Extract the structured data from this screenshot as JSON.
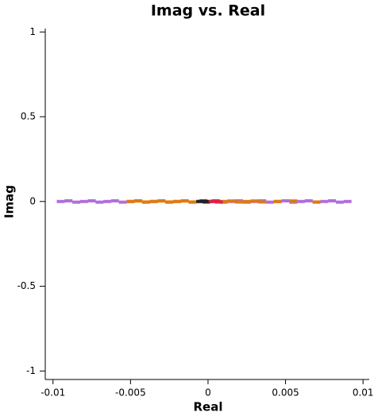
{
  "chart_data": {
    "type": "scatter",
    "title": "Imag vs. Real",
    "x_label": "Real",
    "y_label": "Imag",
    "xlim": [
      -0.0105,
      0.0104
    ],
    "ylim": [
      -1.05,
      1.02
    ],
    "xticks": [
      -0.01,
      -0.005,
      0,
      0.005,
      0.01
    ],
    "yticks": [
      -1,
      -0.5,
      0,
      0.5,
      1
    ],
    "series": [
      {
        "color": "#b06fdc",
        "x": [
          -0.0095,
          -0.009,
          -0.0085,
          -0.008,
          -0.0075,
          -0.007,
          -0.0065,
          -0.006,
          -0.0055,
          -0.005,
          -0.0045,
          -0.004,
          -0.0035,
          -0.003,
          -0.0025,
          -0.002,
          -0.0015,
          -0.001,
          -0.0005,
          0.0005,
          0.001,
          0.0015,
          0.002,
          0.0025,
          0.003,
          0.0035,
          0.004,
          0.0045,
          0.005,
          0.0055,
          0.006,
          0.0065,
          0.007,
          0.0075,
          0.008,
          0.0085,
          0.009
        ],
        "values": [
          0,
          0.004,
          -0.004,
          0,
          0.004,
          -0.004,
          0,
          0.004,
          -0.004,
          0,
          0.004,
          -0.004,
          0,
          0.004,
          -0.004,
          0,
          0.004,
          -0.004,
          0,
          0.004,
          -0.004,
          0,
          0.004,
          -0.004,
          0,
          0.004,
          -0.004,
          0,
          0.004,
          -0.004,
          0,
          0.004,
          -0.004,
          0,
          0.004,
          -0.004,
          0
        ]
      },
      {
        "color": "#e07b10",
        "x": [
          -0.005,
          -0.0045,
          -0.004,
          -0.0035,
          -0.003,
          -0.0025,
          -0.002,
          -0.0015,
          -0.001,
          0.001,
          0.0015,
          0.002,
          0.0025,
          0.003,
          0.0035,
          0.0045,
          0.0055,
          0.007
        ],
        "values": [
          0,
          0.003,
          -0.003,
          0,
          0.003,
          -0.003,
          0,
          0.003,
          -0.003,
          0,
          0.003,
          -0.003,
          0,
          0.003,
          -0.003,
          0,
          0.003,
          -0.003
        ]
      },
      {
        "color": "#222222",
        "x": [
          -0.0005,
          -0.0003,
          -0.0001,
          0.0001
        ],
        "values": [
          0,
          0.003,
          -0.003,
          0
        ]
      },
      {
        "color": "#e0204a",
        "x": [
          0.0003,
          0.0005,
          0.0007
        ],
        "values": [
          0,
          0.003,
          -0.003
        ]
      }
    ]
  }
}
